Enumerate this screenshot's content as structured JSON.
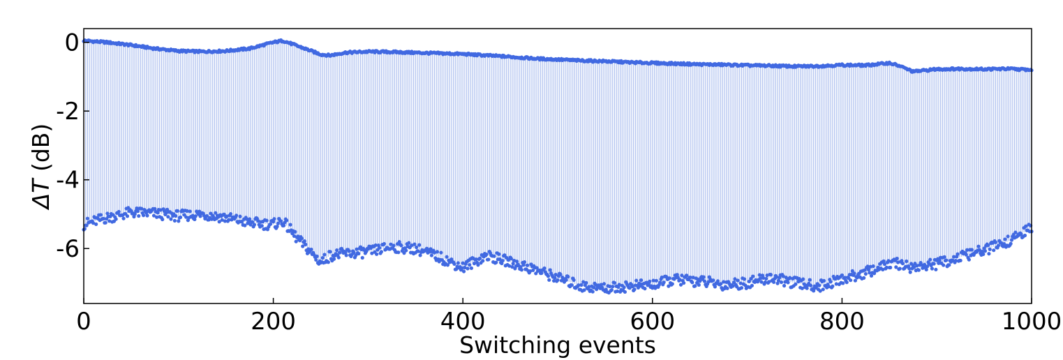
{
  "chart_data": {
    "type": "scatter",
    "title": "",
    "xlabel": "Switching events",
    "ylabel_symbol": "ΔT",
    "ylabel_unit": " (dB)",
    "xlim": [
      0,
      1000
    ],
    "ylim": [
      -7.6,
      0.4
    ],
    "x_ticks": [
      0,
      200,
      400,
      600,
      800,
      1000
    ],
    "x_tick_labels": [
      "0",
      "200",
      "400",
      "600",
      "800",
      "1000"
    ],
    "y_ticks": [
      0,
      -2,
      -4,
      -6
    ],
    "y_tick_labels": [
      "0",
      "-2",
      "-4",
      "-6"
    ],
    "grid": false,
    "legend": "none",
    "colors": {
      "points": "#4169e1",
      "stems": "#aec0ef",
      "axes": "#000000"
    },
    "series": [
      {
        "role": "upper",
        "x": [
          0,
          25,
          50,
          75,
          100,
          125,
          150,
          175,
          200,
          210,
          225,
          250,
          260,
          275,
          300,
          325,
          350,
          375,
          400,
          425,
          450,
          475,
          500,
          525,
          550,
          575,
          600,
          625,
          650,
          675,
          700,
          725,
          750,
          775,
          800,
          825,
          850,
          860,
          875,
          900,
          925,
          950,
          975,
          1000
        ],
        "y": [
          0.05,
          0.0,
          -0.08,
          -0.18,
          -0.25,
          -0.27,
          -0.25,
          -0.18,
          0.0,
          0.05,
          -0.1,
          -0.35,
          -0.38,
          -0.3,
          -0.27,
          -0.28,
          -0.3,
          -0.32,
          -0.34,
          -0.38,
          -0.42,
          -0.47,
          -0.5,
          -0.53,
          -0.55,
          -0.58,
          -0.6,
          -0.62,
          -0.64,
          -0.65,
          -0.67,
          -0.68,
          -0.7,
          -0.69,
          -0.66,
          -0.67,
          -0.6,
          -0.68,
          -0.85,
          -0.78,
          -0.77,
          -0.78,
          -0.77,
          -0.8
        ]
      },
      {
        "role": "lower",
        "x": [
          0,
          25,
          50,
          75,
          100,
          125,
          150,
          175,
          200,
          210,
          225,
          250,
          260,
          275,
          300,
          325,
          350,
          375,
          400,
          425,
          450,
          475,
          500,
          525,
          550,
          575,
          600,
          625,
          650,
          675,
          700,
          725,
          750,
          775,
          800,
          825,
          850,
          860,
          875,
          900,
          925,
          950,
          975,
          1000
        ],
        "y": [
          -5.3,
          -5.1,
          -4.95,
          -4.98,
          -5.05,
          -5.0,
          -5.1,
          -5.25,
          -5.3,
          -5.2,
          -5.7,
          -6.4,
          -6.2,
          -6.15,
          -6.1,
          -5.95,
          -6.0,
          -6.25,
          -6.55,
          -6.2,
          -6.4,
          -6.6,
          -6.85,
          -7.1,
          -7.15,
          -7.1,
          -7.05,
          -6.9,
          -6.95,
          -7.05,
          -7.0,
          -6.85,
          -7.0,
          -7.1,
          -6.9,
          -6.7,
          -6.45,
          -6.45,
          -6.55,
          -6.45,
          -6.25,
          -6.05,
          -5.8,
          -5.4
        ]
      }
    ]
  }
}
